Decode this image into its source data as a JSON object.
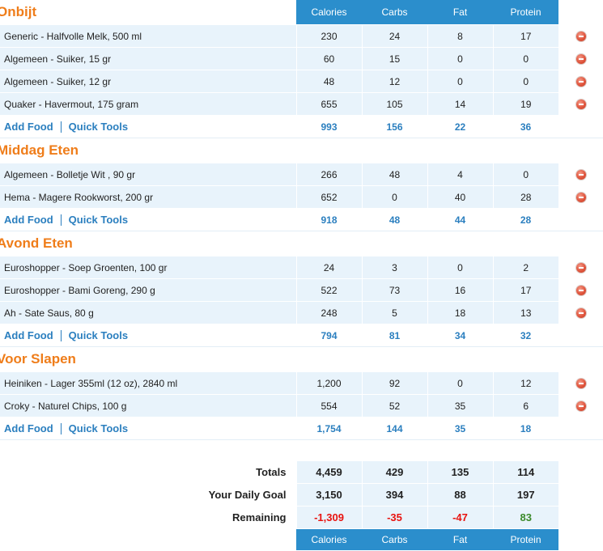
{
  "columns": [
    "Calories",
    "Carbs",
    "Fat",
    "Protein"
  ],
  "meals": [
    {
      "title": "Onbijt",
      "foods": [
        {
          "name": "Generic - Halfvolle Melk, 500 ml",
          "values": [
            "230",
            "24",
            "8",
            "17"
          ]
        },
        {
          "name": "Algemeen - Suiker, 15 gr",
          "values": [
            "60",
            "15",
            "0",
            "0"
          ]
        },
        {
          "name": "Algemeen - Suiker, 12 gr",
          "values": [
            "48",
            "12",
            "0",
            "0"
          ]
        },
        {
          "name": "Quaker - Havermout, 175 gram",
          "values": [
            "655",
            "105",
            "14",
            "19"
          ]
        }
      ],
      "sum": [
        "993",
        "156",
        "22",
        "36"
      ]
    },
    {
      "title": "Middag Eten",
      "foods": [
        {
          "name": "Algemeen - Bolletje Wit , 90 gr",
          "values": [
            "266",
            "48",
            "4",
            "0"
          ]
        },
        {
          "name": "Hema - Magere Rookworst, 200 gr",
          "values": [
            "652",
            "0",
            "40",
            "28"
          ]
        }
      ],
      "sum": [
        "918",
        "48",
        "44",
        "28"
      ]
    },
    {
      "title": "Avond Eten",
      "foods": [
        {
          "name": "Euroshopper - Soep Groenten, 100 gr",
          "values": [
            "24",
            "3",
            "0",
            "2"
          ]
        },
        {
          "name": "Euroshopper - Bami Goreng, 290 g",
          "values": [
            "522",
            "73",
            "16",
            "17"
          ]
        },
        {
          "name": "Ah - Sate Saus, 80 g",
          "values": [
            "248",
            "5",
            "18",
            "13"
          ]
        }
      ],
      "sum": [
        "794",
        "81",
        "34",
        "32"
      ]
    },
    {
      "title": "Voor Slapen",
      "foods": [
        {
          "name": "Heiniken - Lager 355ml (12 oz), 2840 ml",
          "values": [
            "1,200",
            "92",
            "0",
            "12"
          ]
        },
        {
          "name": "Croky - Naturel Chips, 100 g",
          "values": [
            "554",
            "52",
            "35",
            "6"
          ]
        }
      ],
      "sum": [
        "1,754",
        "144",
        "35",
        "18"
      ]
    }
  ],
  "actions": {
    "add_food": "Add Food",
    "quick_tools": "Quick Tools"
  },
  "totals": {
    "totals_label": "Totals",
    "totals": [
      "4,459",
      "429",
      "135",
      "114"
    ],
    "goal_label": "Your Daily Goal",
    "goal": [
      "3,150",
      "394",
      "88",
      "197"
    ],
    "remaining_label": "Remaining",
    "remaining": [
      "-1,309",
      "-35",
      "-47",
      "83"
    ],
    "remaining_status": [
      "negative",
      "negative",
      "negative",
      "positive"
    ]
  },
  "colors": {
    "header": "#2b8ecc",
    "meal_title": "#ef7d1a",
    "link": "#2b7fbf",
    "row_bg": "#e8f3fb",
    "negative": "#e8130f",
    "positive": "#3b8a2a"
  },
  "icons": {
    "delete": "remove-icon"
  }
}
